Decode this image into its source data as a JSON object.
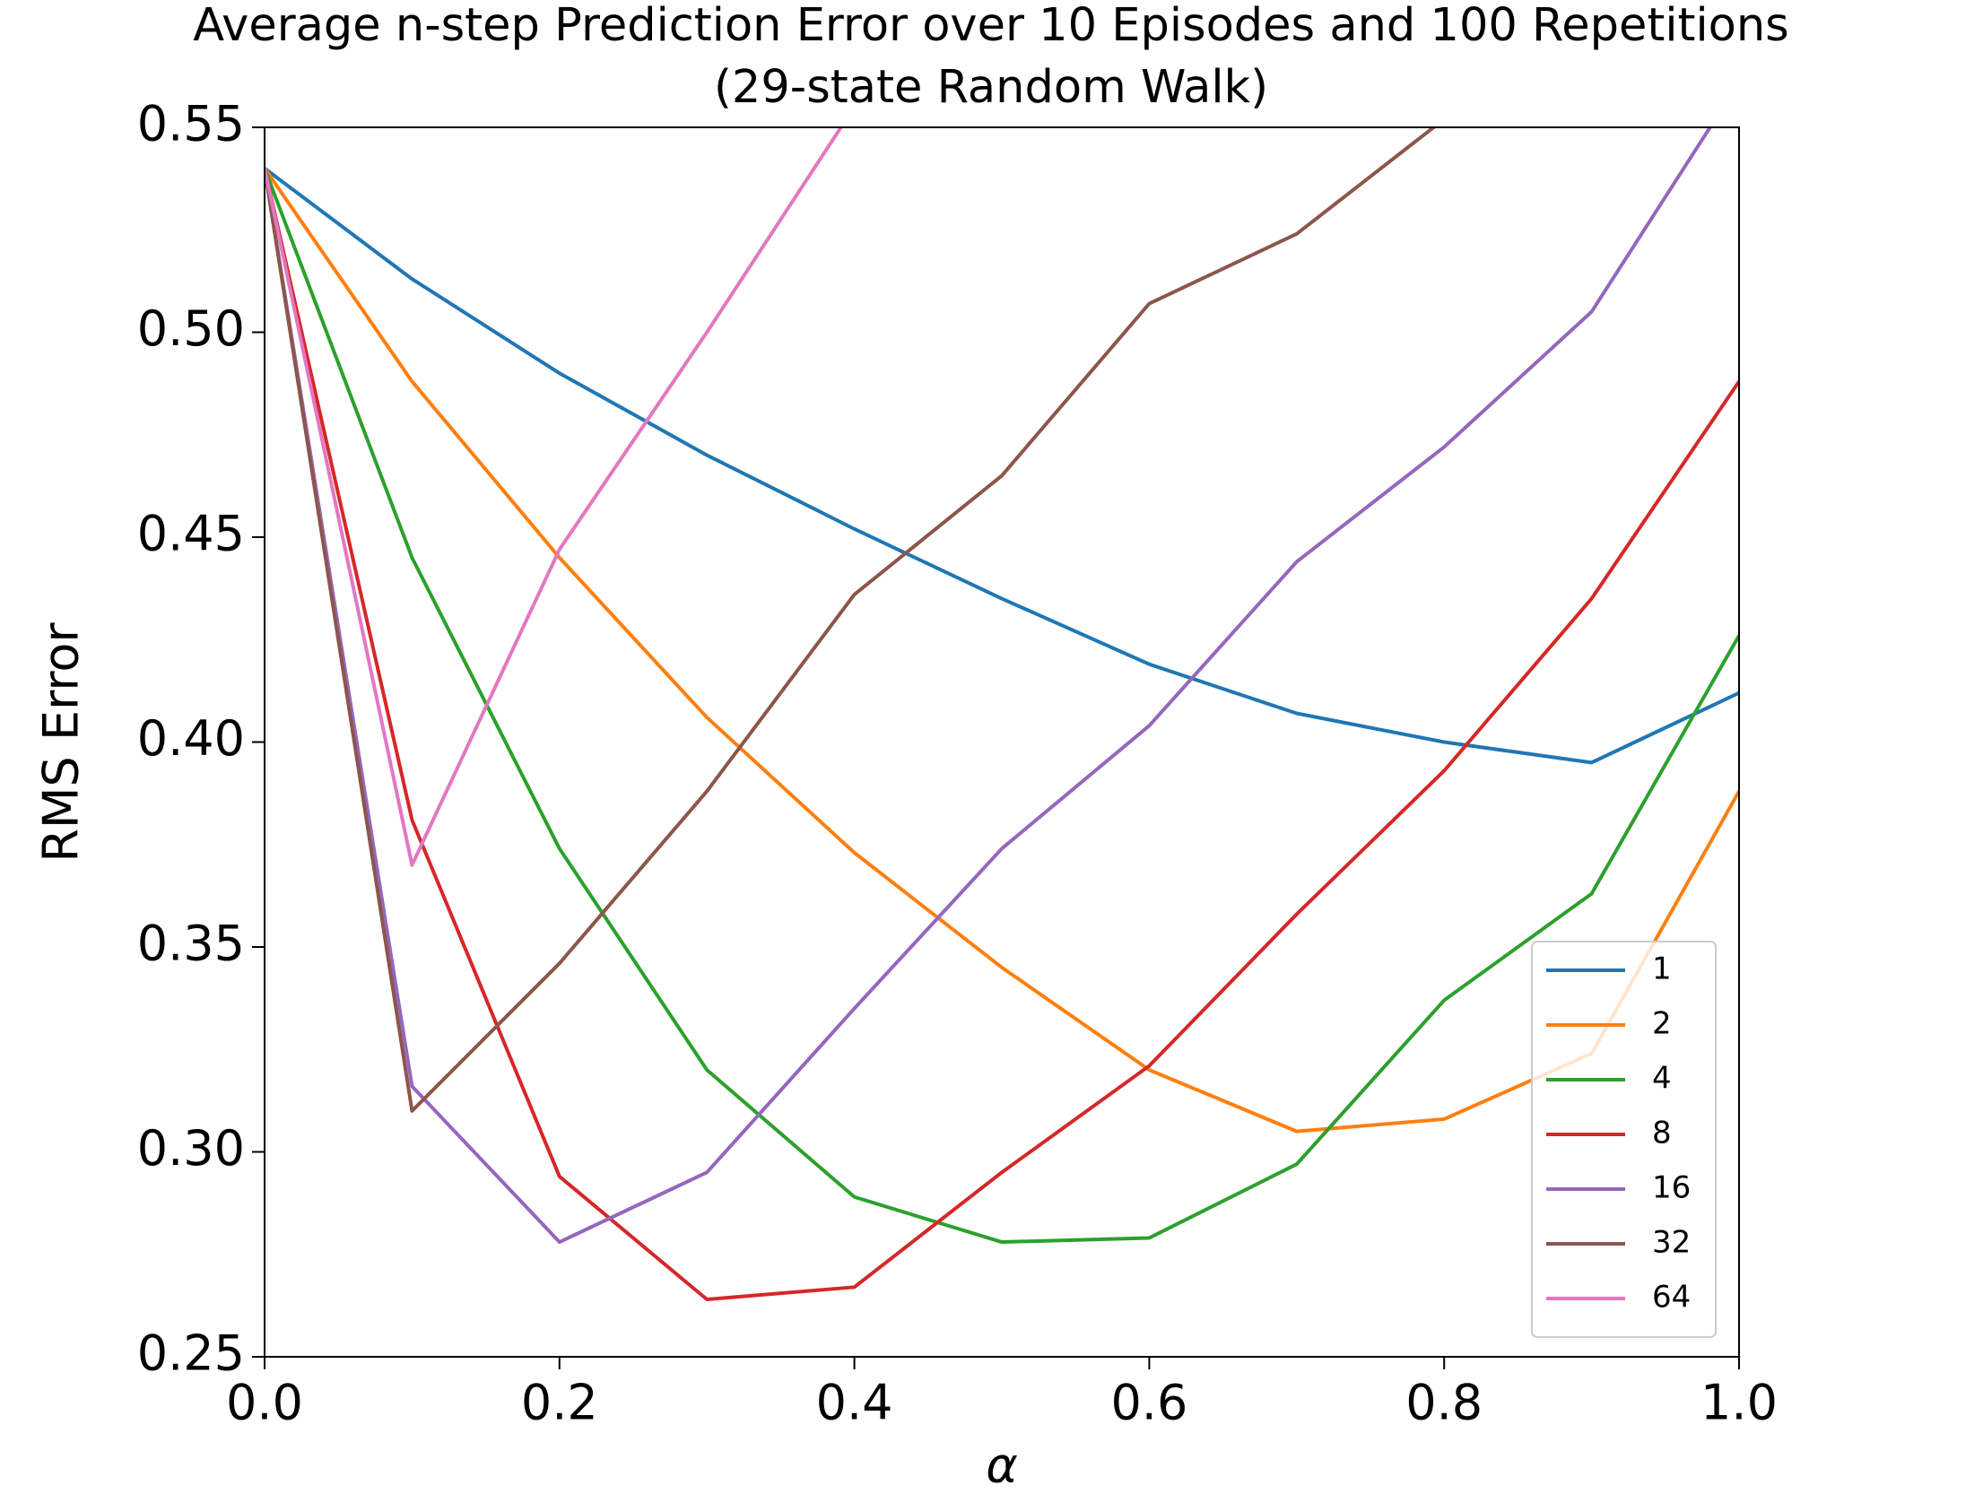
{
  "chart_data": {
    "type": "line",
    "title": [
      "Average n-step Prediction Error over 10 Episodes and 100 Repetitions",
      "(29-state Random Walk)"
    ],
    "xlabel": "α",
    "ylabel": "RMS Error",
    "x": [
      0,
      0.1,
      0.2,
      0.3,
      0.4,
      0.5,
      0.6,
      0.7,
      0.8,
      0.9,
      1.0
    ],
    "series": [
      {
        "name": "1",
        "color": "#1f77b4",
        "values": [
          0.54,
          0.513,
          0.49,
          0.47,
          0.452,
          0.435,
          0.419,
          0.407,
          0.4,
          0.395,
          0.412
        ]
      },
      {
        "name": "2",
        "color": "#ff7f0e",
        "values": [
          0.54,
          0.488,
          0.445,
          0.406,
          0.373,
          0.345,
          0.32,
          0.305,
          0.308,
          0.324,
          0.388
        ]
      },
      {
        "name": "4",
        "color": "#2ca02c",
        "values": [
          0.54,
          0.445,
          0.374,
          0.32,
          0.289,
          0.278,
          0.279,
          0.297,
          0.337,
          0.363,
          0.426
        ]
      },
      {
        "name": "8",
        "color": "#d62728",
        "values": [
          0.54,
          0.381,
          0.294,
          0.264,
          0.267,
          0.295,
          0.321,
          0.358,
          0.393,
          0.435,
          0.488
        ]
      },
      {
        "name": "16",
        "color": "#9467bd",
        "values": [
          0.54,
          0.316,
          0.278,
          0.295,
          0.335,
          0.374,
          0.404,
          0.444,
          0.472,
          0.505,
          0.561
        ]
      },
      {
        "name": "32",
        "color": "#8c564b",
        "values": [
          0.54,
          0.31,
          0.346,
          0.388,
          0.436,
          0.465,
          0.507,
          0.524,
          0.552,
          null,
          null
        ]
      },
      {
        "name": "64",
        "color": "#e377c2",
        "values": [
          0.54,
          0.37,
          0.447,
          0.5,
          0.555,
          null,
          null,
          null,
          null,
          null,
          null
        ]
      }
    ],
    "xlim": [
      0,
      1.0
    ],
    "xticks": [
      {
        "value": 0,
        "label": "0.0"
      },
      0.2,
      0.4,
      0.6,
      0.8,
      {
        "value": 1.0,
        "label": "1.0"
      }
    ],
    "ylim": [
      0.25,
      0.55
    ],
    "yticks": [
      0.25,
      {
        "value": 0.3,
        "label": "0.30"
      },
      0.35,
      {
        "value": 0.4,
        "label": "0.40"
      },
      0.45,
      {
        "value": 0.5,
        "label": "0.50"
      },
      0.55
    ],
    "grid": false,
    "legend": "lower right"
  }
}
